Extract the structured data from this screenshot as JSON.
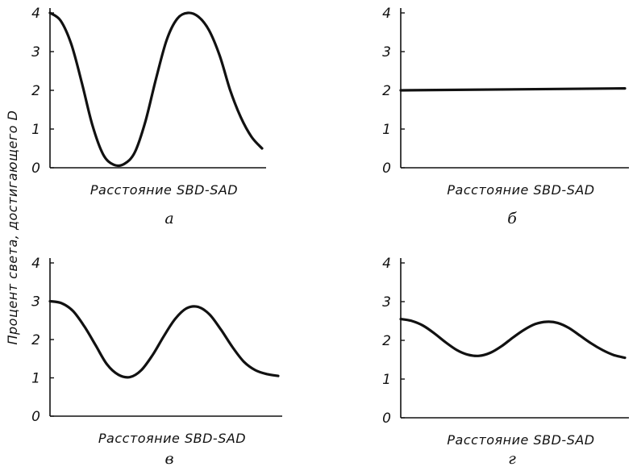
{
  "ylabel": "Процент света, достигающего D",
  "chart_data": [
    {
      "type": "line",
      "panel_label": "а",
      "xlabel": "Расстояние SBD-SAD",
      "ylim": [
        0,
        4
      ],
      "yticks": [
        "0",
        "1",
        "2",
        "3",
        "4"
      ],
      "x": [
        0,
        0.05,
        0.1,
        0.15,
        0.2,
        0.25,
        0.3,
        0.35,
        0.4,
        0.45,
        0.5,
        0.55,
        0.6,
        0.65,
        0.7,
        0.75,
        0.8,
        0.85,
        0.9,
        0.95,
        1.0
      ],
      "y": [
        4.0,
        3.8,
        3.2,
        2.2,
        1.1,
        0.35,
        0.08,
        0.1,
        0.4,
        1.2,
        2.3,
        3.3,
        3.85,
        4.0,
        3.9,
        3.55,
        2.9,
        2.0,
        1.3,
        0.8,
        0.5
      ],
      "grid": false
    },
    {
      "type": "line",
      "panel_label": "б",
      "xlabel": "Расстояние SBD-SAD",
      "ylim": [
        0,
        4
      ],
      "yticks": [
        "0",
        "1",
        "2",
        "3",
        "4"
      ],
      "x": [
        0,
        1.0
      ],
      "y": [
        2.0,
        2.05
      ],
      "grid": false
    },
    {
      "type": "line",
      "panel_label": "в",
      "xlabel": "Расстояние SBD-SAD",
      "ylim": [
        0,
        4
      ],
      "yticks": [
        "0",
        "1",
        "2",
        "3",
        "4"
      ],
      "x": [
        0,
        0.05,
        0.1,
        0.15,
        0.2,
        0.25,
        0.3,
        0.35,
        0.4,
        0.45,
        0.5,
        0.55,
        0.6,
        0.65,
        0.7,
        0.75,
        0.8,
        0.85,
        0.9,
        0.95,
        1.0
      ],
      "y": [
        3.0,
        2.95,
        2.75,
        2.35,
        1.85,
        1.35,
        1.08,
        1.02,
        1.2,
        1.6,
        2.1,
        2.55,
        2.82,
        2.85,
        2.65,
        2.25,
        1.8,
        1.42,
        1.2,
        1.1,
        1.05
      ],
      "grid": false
    },
    {
      "type": "line",
      "panel_label": "г",
      "xlabel": "Расстояние SBD-SAD",
      "ylim": [
        0,
        4
      ],
      "yticks": [
        "0",
        "1",
        "2",
        "3",
        "4"
      ],
      "x": [
        0,
        0.05,
        0.1,
        0.15,
        0.2,
        0.25,
        0.3,
        0.35,
        0.4,
        0.45,
        0.5,
        0.55,
        0.6,
        0.65,
        0.7,
        0.75,
        0.8,
        0.85,
        0.9,
        0.95,
        1.0
      ],
      "y": [
        2.55,
        2.5,
        2.38,
        2.18,
        1.95,
        1.75,
        1.63,
        1.6,
        1.68,
        1.85,
        2.07,
        2.27,
        2.42,
        2.48,
        2.45,
        2.32,
        2.12,
        1.92,
        1.75,
        1.62,
        1.55
      ],
      "grid": false
    }
  ]
}
